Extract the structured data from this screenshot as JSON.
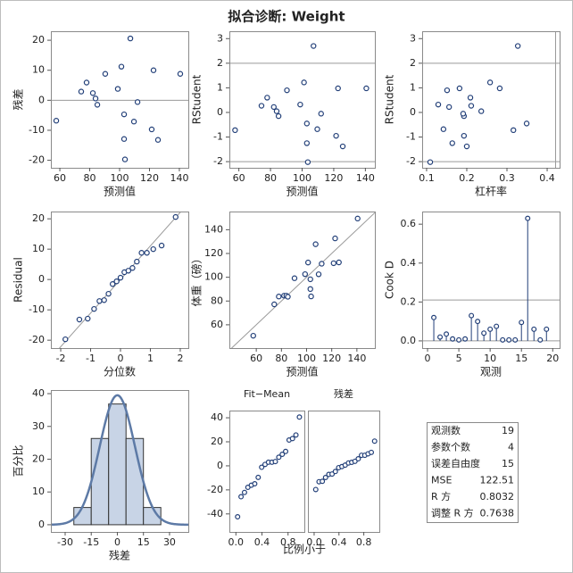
{
  "title": "拟合诊断: Weight",
  "chart_data": [
    {
      "type": "scatter",
      "xlabel": "预测值",
      "ylabel": "残差",
      "x": [
        57.6,
        74.3,
        77.9,
        82.1,
        83.9,
        85.1,
        90.4,
        98.8,
        101.2,
        103.0,
        103.0,
        103.6,
        107.2,
        109.6,
        112.0,
        122.7,
        121.5,
        125.7,
        140.6
      ],
      "y": [
        -6.8,
        2.9,
        5.9,
        2.4,
        0.6,
        -1.5,
        8.8,
        3.8,
        11.2,
        -4.7,
        -12.9,
        -19.7,
        20.6,
        -7.1,
        -0.6,
        10.0,
        -9.7,
        -13.2,
        8.8
      ],
      "xlim": [
        54,
        146
      ],
      "ylim": [
        -22.5,
        23
      ],
      "xticks": [
        60,
        80,
        100,
        120,
        140
      ],
      "yticks": [
        -20,
        -10,
        0,
        10,
        20
      ],
      "ref_lines": [
        {
          "axis": "y",
          "value": 0
        }
      ]
    },
    {
      "type": "scatter",
      "xlabel": "预测值",
      "ylabel": "RStudent",
      "x": [
        57.6,
        74.3,
        77.9,
        82.1,
        83.9,
        85.1,
        90.4,
        98.8,
        101.2,
        103.0,
        103.0,
        103.6,
        107.2,
        109.6,
        112.0,
        122.7,
        121.5,
        125.7,
        140.6
      ],
      "y": [
        -0.72,
        0.27,
        0.6,
        0.22,
        0.05,
        -0.15,
        0.9,
        0.32,
        1.22,
        -0.45,
        -1.25,
        -2.02,
        2.7,
        -0.68,
        -0.05,
        0.98,
        -0.95,
        -1.38,
        0.98
      ],
      "xlim": [
        54,
        146
      ],
      "ylim": [
        -2.25,
        3.3
      ],
      "xticks": [
        60,
        80,
        100,
        120,
        140
      ],
      "yticks": [
        -2,
        -1,
        0,
        1,
        2,
        3
      ],
      "ref_lines": [
        {
          "axis": "y",
          "value": 2
        },
        {
          "axis": "y",
          "value": -2
        }
      ]
    },
    {
      "type": "scatter",
      "xlabel": "杠杆率",
      "ylabel": "RStudent",
      "x": [
        0.316,
        0.211,
        0.209,
        0.156,
        0.236,
        0.193,
        0.151,
        0.129,
        0.258,
        0.349,
        0.164,
        0.109,
        0.327,
        0.142,
        0.191,
        0.182,
        0.193,
        0.2,
        0.282
      ],
      "y": [
        -0.72,
        0.27,
        0.6,
        0.22,
        0.05,
        -0.15,
        0.9,
        0.32,
        1.22,
        -0.45,
        -1.25,
        -2.02,
        2.7,
        -0.68,
        -0.05,
        0.98,
        -0.95,
        -1.38,
        0.98
      ],
      "xlim": [
        0.089,
        0.431
      ],
      "ylim": [
        -2.25,
        3.3
      ],
      "xticks": [
        0.1,
        0.2,
        0.3,
        0.4
      ],
      "yticks": [
        -2,
        -1,
        0,
        1,
        2,
        3
      ],
      "ref_lines": [
        {
          "axis": "y",
          "value": 2
        },
        {
          "axis": "y",
          "value": -2
        },
        {
          "axis": "x",
          "value": 0.421
        }
      ]
    },
    {
      "type": "scatter",
      "xlabel": "分位数",
      "ylabel": "Residual",
      "x": [
        -1.845,
        -1.376,
        -1.097,
        -0.884,
        -0.705,
        -0.547,
        -0.401,
        -0.264,
        -0.13,
        0,
        0.13,
        0.264,
        0.401,
        0.547,
        0.705,
        0.884,
        1.097,
        1.376,
        1.845
      ],
      "y": [
        -19.7,
        -13.2,
        -12.9,
        -9.7,
        -7.1,
        -6.8,
        -4.7,
        -1.5,
        -0.6,
        0.6,
        2.4,
        2.9,
        3.8,
        5.9,
        8.8,
        8.8,
        10.0,
        11.2,
        20.6
      ],
      "xlim": [
        -2.33,
        2.27
      ],
      "ylim": [
        -22.6,
        22.4
      ],
      "xticks": [
        -2,
        -1,
        0,
        1,
        2
      ],
      "yticks": [
        -20,
        -10,
        0,
        10,
        20
      ],
      "ref_line": {
        "slope": 11.07,
        "intercept": 0
      }
    },
    {
      "type": "scatter",
      "xlabel": "预测值",
      "ylabel": "体重（磅）",
      "x": [
        57.6,
        74.3,
        77.9,
        82.1,
        83.9,
        85.1,
        90.4,
        98.8,
        101.2,
        103.0,
        103.0,
        103.6,
        107.2,
        109.6,
        112.0,
        122.7,
        121.5,
        125.7,
        140.6
      ],
      "y": [
        50.8,
        77.2,
        83.8,
        84.5,
        84.5,
        83.6,
        99.2,
        102.6,
        112.4,
        98.3,
        90.1,
        83.9,
        127.8,
        102.5,
        111.4,
        132.7,
        111.8,
        112.5,
        149.4
      ],
      "xlim": [
        38.6,
        154.3
      ],
      "ylim": [
        40.4,
        155.3
      ],
      "xticks": [
        60,
        80,
        100,
        120,
        140
      ],
      "yticks": [
        60,
        80,
        100,
        120,
        140
      ],
      "ref_line": {
        "slope": 1,
        "intercept": 0
      }
    },
    {
      "type": "needle",
      "xlabel": "观测",
      "ylabel": "Cook D",
      "x": [
        1,
        2,
        3,
        4,
        5,
        6,
        7,
        8,
        9,
        10,
        11,
        12,
        13,
        14,
        15,
        16,
        17,
        18,
        19
      ],
      "y": [
        0.12,
        0.02,
        0.035,
        0.01,
        0.005,
        0.01,
        0.13,
        0.1,
        0.04,
        0.06,
        0.075,
        0.005,
        0.005,
        0.005,
        0.095,
        0.63,
        0.06,
        0.005,
        0.06
      ],
      "xlim": [
        -0.86,
        21.1
      ],
      "ylim": [
        -0.037,
        0.665
      ],
      "xticks": [
        0,
        5,
        10,
        15,
        20
      ],
      "yticks": [
        {
          "value": 0,
          "label": "0.0"
        },
        0.2,
        0.4,
        0.6
      ],
      "ref_lines": [
        {
          "axis": "y",
          "value": 0.21
        },
        {
          "axis": "y",
          "value": 0
        }
      ]
    },
    {
      "type": "histogram",
      "xlabel": "残差",
      "ylabel": "百分比",
      "bins": [
        -25,
        -15,
        -5,
        5,
        15,
        25
      ],
      "values": [
        5.26,
        26.32,
        36.84,
        26.32,
        5.26
      ],
      "xlim": [
        -38.2,
        40.8
      ],
      "ylim": [
        -2.2,
        41.1
      ],
      "xticks": [
        -30,
        -15,
        0,
        15,
        30
      ],
      "yticks": [
        0,
        10,
        20,
        30,
        40
      ],
      "normal_curve": {
        "mean": 0,
        "sd": 10.1
      }
    },
    {
      "type": "spread",
      "xlabel": "比例小于",
      "x": [
        0.026,
        0.079,
        0.132,
        0.184,
        0.237,
        0.289,
        0.342,
        0.395,
        0.447,
        0.5,
        0.553,
        0.605,
        0.658,
        0.711,
        0.763,
        0.816,
        0.868,
        0.921,
        0.974
      ],
      "series": [
        {
          "name": "Fit−Mean",
          "values": [
            -42.4,
            -25.7,
            -22.1,
            -17.9,
            -16.1,
            -14.9,
            -9.6,
            -1.2,
            1.2,
            3.0,
            3.0,
            3.6,
            7.2,
            9.6,
            12.0,
            21.5,
            22.7,
            25.7,
            40.6
          ]
        },
        {
          "name": "残差",
          "values": [
            -19.7,
            -13.2,
            -12.9,
            -9.7,
            -7.1,
            -6.8,
            -4.7,
            -1.5,
            -0.6,
            0.6,
            2.4,
            2.9,
            3.8,
            5.9,
            8.8,
            8.8,
            10.0,
            11.2,
            20.6
          ]
        }
      ],
      "xlim": [
        -0.1,
        1.05
      ],
      "ylim": [
        -55,
        46
      ],
      "xticks": [
        {
          "value": 0,
          "label": "0.0"
        },
        0.4,
        0.8
      ],
      "yticks": [
        -40,
        -20,
        0,
        20,
        40
      ]
    }
  ],
  "fit_statistics": {
    "rows": [
      [
        "观测数",
        19
      ],
      [
        "参数个数",
        4
      ],
      [
        "误差自由度",
        15
      ],
      [
        "MSE",
        122.51
      ],
      [
        "R 方",
        0.8032
      ],
      [
        "调整 R 方",
        0.7638
      ]
    ]
  }
}
